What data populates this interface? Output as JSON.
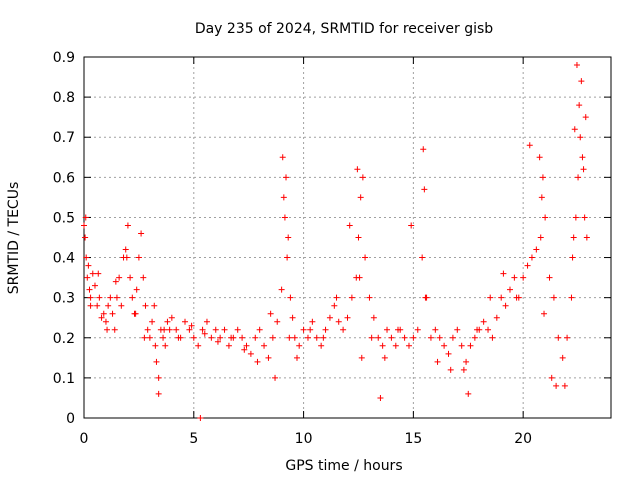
{
  "chart_data": {
    "type": "scatter",
    "title": "Day 235 of 2024, SRMTID for receiver gisb",
    "xlabel": "GPS time / hours",
    "ylabel": "SRMTID / TECUs",
    "xlim": [
      0,
      24
    ],
    "ylim": [
      0,
      0.9
    ],
    "x_ticks": [
      0,
      5,
      10,
      15,
      20
    ],
    "x_tick_labels": [
      "0",
      "5",
      "10",
      "15",
      "20"
    ],
    "y_ticks": [
      0,
      0.1,
      0.2,
      0.3,
      0.4,
      0.5,
      0.6,
      0.7,
      0.8,
      0.9
    ],
    "y_tick_labels": [
      "0",
      "0.1",
      "0.2",
      "0.3",
      "0.4",
      "0.5",
      "0.6",
      "0.7",
      "0.8",
      "0.9"
    ],
    "grid": true,
    "marker": "+",
    "color": "#ff0000",
    "series": [
      {
        "name": "SRMTID",
        "x": [
          0.0,
          0.05,
          0.1,
          0.15,
          0.2,
          0.25,
          0.3,
          0.4,
          0.5,
          0.6,
          0.7,
          0.8,
          0.9,
          1.0,
          1.1,
          1.2,
          1.3,
          1.4,
          1.5,
          1.6,
          1.7,
          1.8,
          1.9,
          2.0,
          2.1,
          2.2,
          2.3,
          2.4,
          2.5,
          2.6,
          2.7,
          2.8,
          2.9,
          3.0,
          3.1,
          3.2,
          3.3,
          3.4,
          3.5,
          3.6,
          3.7,
          3.8,
          3.9,
          4.0,
          4.2,
          4.4,
          4.6,
          4.8,
          5.0,
          5.2,
          5.4,
          5.6,
          5.8,
          6.0,
          6.2,
          6.4,
          6.6,
          6.8,
          7.0,
          7.2,
          7.4,
          7.6,
          7.8,
          8.0,
          8.2,
          8.4,
          8.6,
          8.8,
          9.0,
          9.1,
          9.2,
          9.3,
          9.4,
          9.5,
          9.6,
          9.8,
          10.0,
          10.2,
          10.4,
          10.6,
          10.8,
          11.0,
          11.2,
          11.4,
          11.6,
          11.8,
          12.0,
          12.2,
          12.4,
          12.5,
          12.6,
          12.7,
          12.8,
          13.0,
          13.2,
          13.4,
          13.6,
          13.8,
          14.0,
          14.2,
          14.4,
          14.6,
          14.8,
          15.0,
          15.2,
          15.4,
          15.5,
          15.6,
          15.8,
          16.0,
          16.2,
          16.4,
          16.6,
          16.8,
          17.0,
          17.2,
          17.4,
          17.6,
          17.8,
          18.0,
          18.2,
          18.4,
          18.6,
          18.8,
          19.0,
          19.2,
          19.4,
          19.6,
          19.8,
          20.0,
          20.2,
          20.4,
          20.6,
          20.8,
          20.9,
          21.0,
          21.2,
          21.4,
          21.6,
          21.8,
          22.0,
          22.2,
          22.3,
          22.4,
          22.5,
          22.6,
          22.7,
          22.8,
          22.9,
          0.08,
          0.3,
          0.65,
          1.05,
          1.45,
          1.95,
          2.35,
          2.75,
          3.25,
          3.65,
          4.3,
          4.9,
          5.5,
          6.1,
          6.7,
          7.3,
          7.9,
          8.5,
          9.05,
          9.15,
          9.25,
          9.35,
          9.7,
          10.3,
          10.9,
          11.5,
          12.1,
          12.45,
          12.55,
          12.65,
          13.1,
          13.7,
          14.3,
          14.9,
          15.45,
          15.55,
          16.1,
          16.7,
          17.3,
          17.9,
          18.5,
          19.1,
          19.7,
          20.3,
          20.75,
          20.85,
          20.95,
          21.3,
          21.9,
          22.25,
          22.35,
          22.45,
          22.55,
          22.65,
          22.75,
          22.85,
          5.3,
          3.4,
          8.7,
          13.5,
          17.5,
          21.5
        ],
        "y": [
          0.48,
          0.45,
          0.4,
          0.35,
          0.38,
          0.32,
          0.3,
          0.36,
          0.33,
          0.28,
          0.3,
          0.25,
          0.26,
          0.24,
          0.28,
          0.3,
          0.26,
          0.22,
          0.3,
          0.35,
          0.28,
          0.4,
          0.42,
          0.48,
          0.35,
          0.3,
          0.26,
          0.32,
          0.4,
          0.46,
          0.35,
          0.28,
          0.22,
          0.2,
          0.24,
          0.28,
          0.14,
          0.1,
          0.22,
          0.2,
          0.18,
          0.24,
          0.22,
          0.25,
          0.22,
          0.2,
          0.24,
          0.22,
          0.2,
          0.18,
          0.22,
          0.24,
          0.2,
          0.22,
          0.2,
          0.22,
          0.18,
          0.2,
          0.22,
          0.2,
          0.18,
          0.16,
          0.2,
          0.22,
          0.18,
          0.15,
          0.2,
          0.24,
          0.32,
          0.55,
          0.6,
          0.45,
          0.3,
          0.25,
          0.2,
          0.18,
          0.22,
          0.2,
          0.24,
          0.2,
          0.18,
          0.22,
          0.25,
          0.28,
          0.24,
          0.22,
          0.25,
          0.3,
          0.35,
          0.45,
          0.55,
          0.6,
          0.4,
          0.3,
          0.25,
          0.2,
          0.18,
          0.22,
          0.2,
          0.18,
          0.22,
          0.2,
          0.18,
          0.2,
          0.22,
          0.4,
          0.57,
          0.3,
          0.2,
          0.22,
          0.2,
          0.18,
          0.16,
          0.2,
          0.22,
          0.18,
          0.14,
          0.18,
          0.2,
          0.22,
          0.24,
          0.22,
          0.2,
          0.25,
          0.3,
          0.28,
          0.32,
          0.35,
          0.3,
          0.35,
          0.38,
          0.4,
          0.42,
          0.45,
          0.6,
          0.5,
          0.35,
          0.3,
          0.2,
          0.15,
          0.2,
          0.3,
          0.45,
          0.5,
          0.6,
          0.7,
          0.65,
          0.5,
          0.45,
          0.5,
          0.28,
          0.36,
          0.22,
          0.34,
          0.4,
          0.26,
          0.2,
          0.18,
          0.22,
          0.2,
          0.23,
          0.21,
          0.19,
          0.2,
          0.17,
          0.14,
          0.26,
          0.65,
          0.5,
          0.4,
          0.2,
          0.15,
          0.22,
          0.2,
          0.3,
          0.48,
          0.62,
          0.35,
          0.15,
          0.2,
          0.15,
          0.22,
          0.48,
          0.67,
          0.3,
          0.14,
          0.12,
          0.12,
          0.22,
          0.3,
          0.36,
          0.3,
          0.68,
          0.65,
          0.55,
          0.26,
          0.1,
          0.08,
          0.4,
          0.72,
          0.88,
          0.78,
          0.84,
          0.62,
          0.75,
          0.0,
          0.06,
          0.1,
          0.05,
          0.06,
          0.08
        ]
      }
    ]
  }
}
